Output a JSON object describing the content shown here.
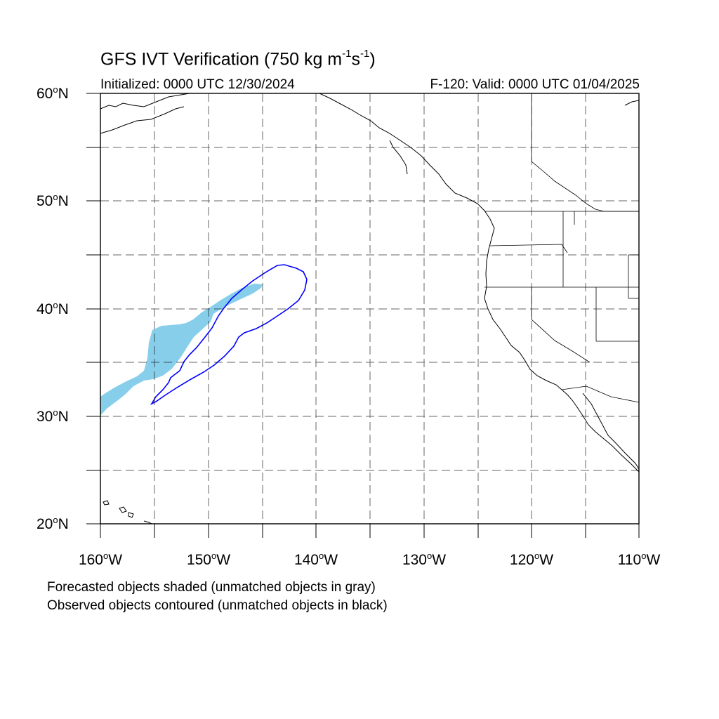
{
  "title": {
    "prefix": "GFS IVT Verification (750 kg m",
    "sup1": "-1",
    "mid": "s",
    "sup2": "-1",
    "suffix": ")"
  },
  "subtitle_left": "Initialized: 0000 UTC 12/30/2024",
  "subtitle_right": "F-120: Valid: 0000 UTC 01/04/2025",
  "lat_labels": [
    {
      "num": "60",
      "dir": "N"
    },
    {
      "num": "50",
      "dir": "N"
    },
    {
      "num": "40",
      "dir": "N"
    },
    {
      "num": "30",
      "dir": "N"
    },
    {
      "num": "20",
      "dir": "N"
    }
  ],
  "lon_labels": [
    {
      "num": "160",
      "dir": "W"
    },
    {
      "num": "150",
      "dir": "W"
    },
    {
      "num": "140",
      "dir": "W"
    },
    {
      "num": "130",
      "dir": "W"
    },
    {
      "num": "120",
      "dir": "W"
    },
    {
      "num": "110",
      "dir": "W"
    }
  ],
  "degree_symbol": "o",
  "notes": [
    "Forecasted objects shaded (unmatched objects in gray)",
    "Observed objects contoured (unmatched objects in black)"
  ],
  "map_extent": {
    "lon_min": -160,
    "lon_max": -110,
    "lat_min": 20,
    "lat_max": 60
  },
  "colors": {
    "forecast_fill": "#87ceeb",
    "observed_contour": "#0000ff",
    "coastline": "#000000",
    "grid": "#000000"
  }
}
